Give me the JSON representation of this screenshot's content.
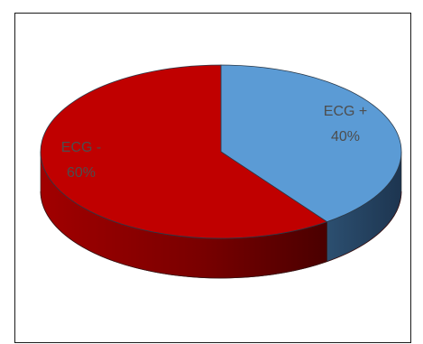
{
  "chart_data": {
    "type": "pie",
    "three_d": true,
    "title": "",
    "legend": "none",
    "slices": [
      {
        "category": "ECG +",
        "value": 40,
        "label_value": "40%",
        "color": "#5b9bd5"
      },
      {
        "category": "ECG -",
        "value": 60,
        "label_value": "60%",
        "color": "#c00000"
      }
    ]
  }
}
